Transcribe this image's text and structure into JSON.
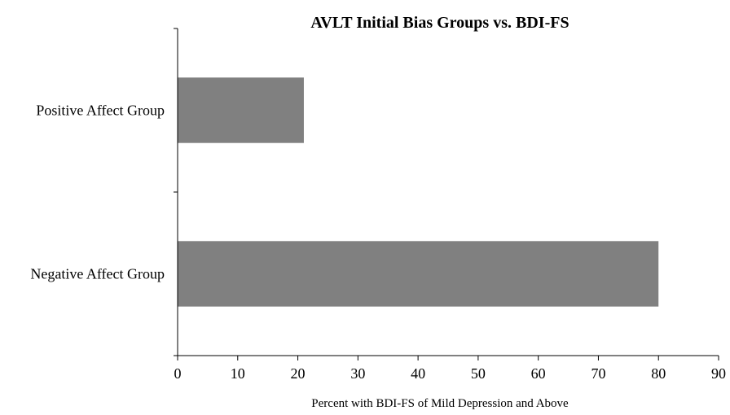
{
  "chart_data": {
    "type": "bar",
    "orientation": "horizontal",
    "title": "AVLT Initial Bias Groups vs. BDI-FS",
    "xlabel": "Percent with BDI-FS of Mild Depression and Above",
    "ylabel": "",
    "categories": [
      "Positive Affect Group",
      "Negative Affect Group"
    ],
    "values": [
      21,
      80
    ],
    "xlim": [
      0,
      90
    ],
    "xticks": [
      "0",
      "10",
      "20",
      "30",
      "40",
      "50",
      "60",
      "70",
      "80",
      "90"
    ],
    "grid": false,
    "legend": "none",
    "bar_color": "#808080"
  }
}
